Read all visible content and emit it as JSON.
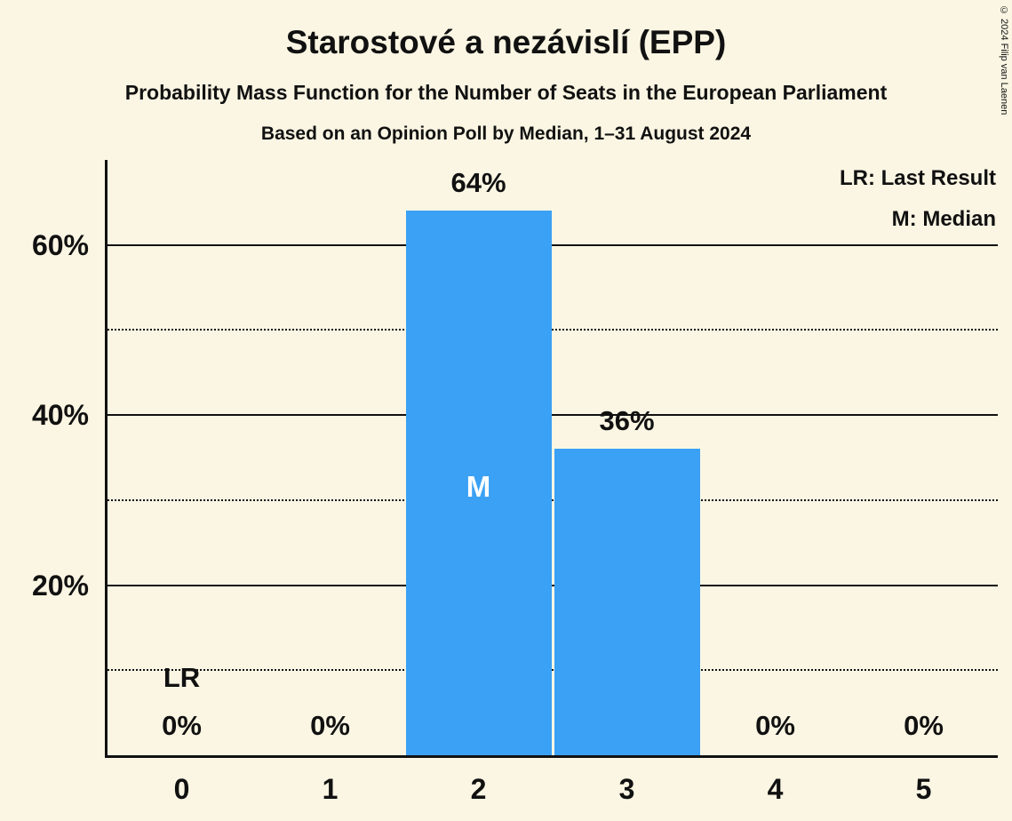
{
  "colors": {
    "background": "#FBF6E3",
    "bar": "#3AA1F5",
    "text": "#111111",
    "median_label": "#FFFFFF"
  },
  "chart_data": {
    "type": "bar",
    "title": "Starostové a nezávislí (EPP)",
    "subtitle": "Probability Mass Function for the Number of Seats in the European Parliament",
    "note": "Based on an Opinion Poll by Median, 1–31 August 2024",
    "copyright": "© 2024 Filip van Laenen",
    "legend": [
      "LR: Last Result",
      "M: Median"
    ],
    "legend_position": "top-right",
    "xlabel": "",
    "ylabel": "",
    "categories": [
      "0",
      "1",
      "2",
      "3",
      "4",
      "5"
    ],
    "values": [
      0,
      0,
      64,
      36,
      0,
      0
    ],
    "bar_labels": [
      "0%",
      "0%",
      "64%",
      "36%",
      "0%",
      "0%"
    ],
    "ylim": [
      0,
      70
    ],
    "yticks": [
      {
        "value": 20,
        "label": "20%"
      },
      {
        "value": 40,
        "label": "40%"
      },
      {
        "value": 60,
        "label": "60%"
      }
    ],
    "solid_gridlines": [
      20,
      40,
      60
    ],
    "dotted_gridlines": [
      10,
      30,
      50
    ],
    "grid": "horizontal",
    "median": {
      "category": "2",
      "label": "M"
    },
    "last_result": {
      "category": "0",
      "label": "LR"
    }
  }
}
